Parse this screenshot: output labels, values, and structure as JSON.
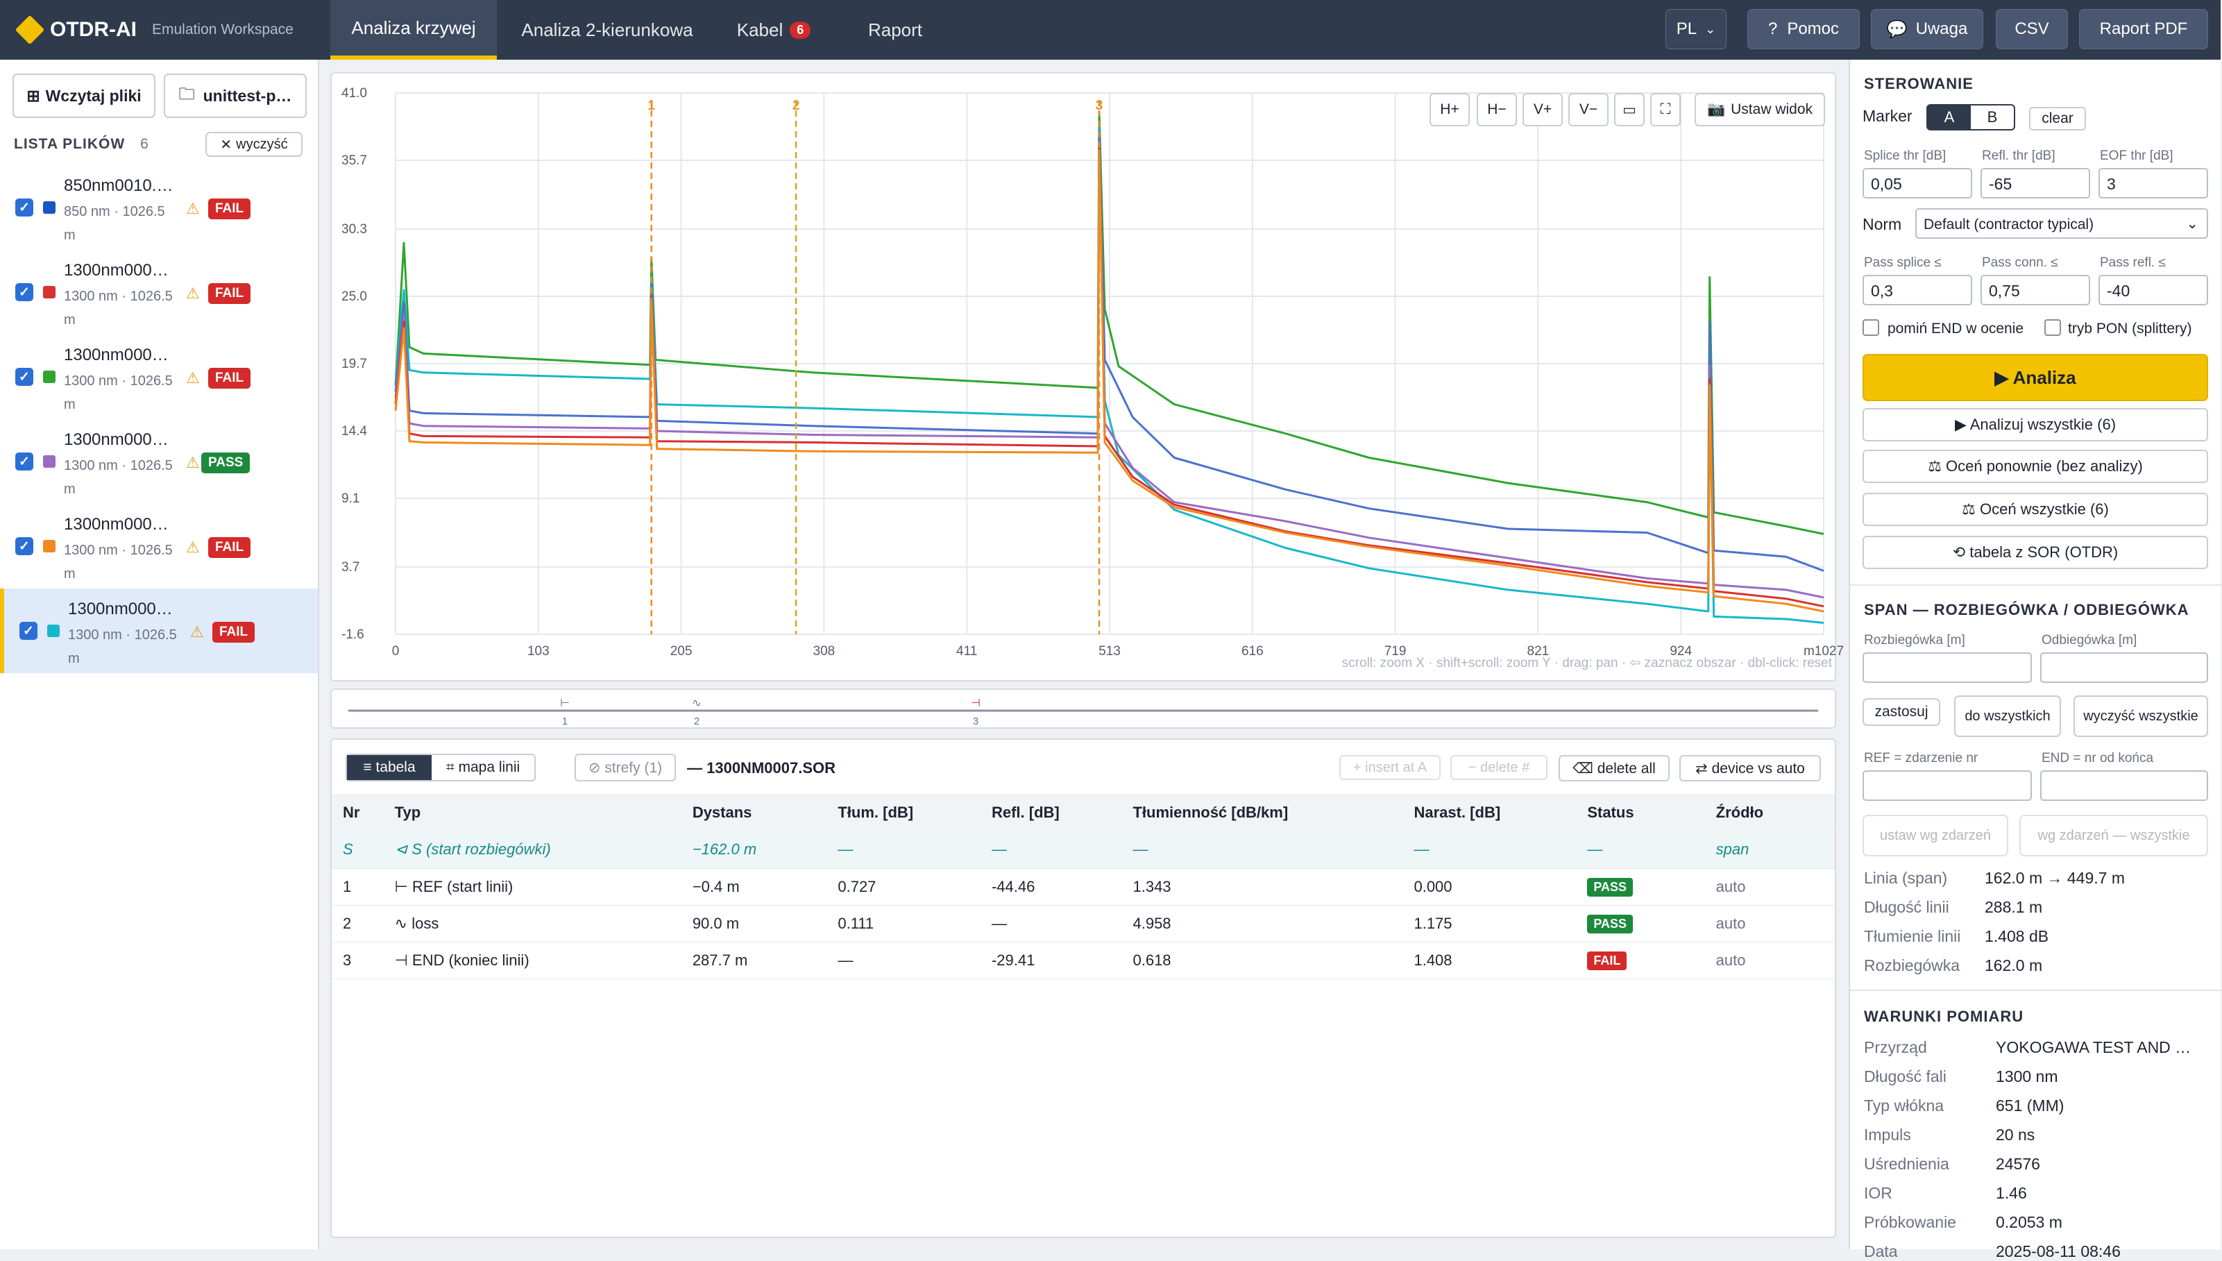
{
  "app": {
    "name": "OTDR-AI",
    "subtitle": "Emulation Workspace"
  },
  "nav": {
    "tabs": [
      "Analiza krzywej",
      "Analiza 2-kierunkowa",
      "Kabel",
      "Raport"
    ],
    "cable_count": "6"
  },
  "topright": {
    "lang": "PL",
    "help": "Pomoc",
    "note": "Uwaga",
    "csv": "CSV",
    "pdf": "Raport PDF"
  },
  "sidebar": {
    "load_button": "Wczytaj pliki",
    "folder_button": "unittest-p…",
    "list_title": "LISTA PLIKÓW",
    "count": "6",
    "clear": "wyczyść",
    "files": [
      {
        "name": "850nm0010.…",
        "meta": "850 nm · 1026.5 m",
        "status": "FAIL",
        "color": "#1a56c4"
      },
      {
        "name": "1300nm000…",
        "meta": "1300 nm · 1026.5 m",
        "status": "FAIL",
        "color": "#d93030"
      },
      {
        "name": "1300nm000…",
        "meta": "1300 nm · 1026.5 m",
        "status": "FAIL",
        "color": "#2fa52f"
      },
      {
        "name": "1300nm000…",
        "meta": "1300 nm · 1026.5 m",
        "status": "PASS",
        "color": "#9b6bc4"
      },
      {
        "name": "1300nm000…",
        "meta": "1300 nm · 1026.5 m",
        "status": "FAIL",
        "color": "#f08a1c"
      },
      {
        "name": "1300nm000…",
        "meta": "1300 nm · 1026.5 m",
        "status": "FAIL",
        "color": "#17b8c8"
      }
    ]
  },
  "chart_toolbar": [
    "H+",
    "H−",
    "V+",
    "V−",
    "▭",
    "⛶"
  ],
  "set_view": "Ustaw widok",
  "chart_hint": "scroll: zoom X · shift+scroll: zoom Y · drag: pan · ⇦ zaznacz obszar · dbl-click: reset",
  "chart_data": {
    "type": "line",
    "x_ticks": [
      "0",
      "103",
      "205",
      "308",
      "411",
      "513",
      "616",
      "719",
      "821",
      "924",
      "m1027"
    ],
    "y_ticks": [
      "41.0",
      "35.7",
      "30.3",
      "25.0",
      "19.7",
      "14.4",
      "9.1",
      "3.7",
      "-1.6"
    ],
    "xlim": [
      0,
      1027
    ],
    "ylim": [
      -1.6,
      41.0
    ],
    "markers": [
      {
        "label": "1",
        "x": 184,
        "color": "#f08a1c"
      },
      {
        "label": "2",
        "x": 288,
        "color": "#e0a020"
      },
      {
        "label": "3",
        "x": 506,
        "color": "#e0902a"
      }
    ],
    "series": [
      {
        "color": "#2fa52f",
        "points": [
          [
            0,
            18.0
          ],
          [
            6,
            29.2
          ],
          [
            10,
            21.0
          ],
          [
            20,
            20.5
          ],
          [
            183,
            19.6
          ],
          [
            184,
            28.0
          ],
          [
            187,
            20.0
          ],
          [
            300,
            19.0
          ],
          [
            505,
            17.8
          ],
          [
            506,
            39.5
          ],
          [
            510,
            24.0
          ],
          [
            520,
            19.5
          ],
          [
            560,
            16.5
          ],
          [
            640,
            14.2
          ],
          [
            700,
            12.3
          ],
          [
            800,
            10.3
          ],
          [
            900,
            8.8
          ],
          [
            944,
            7.6
          ],
          [
            945,
            26.5
          ],
          [
            948,
            8.0
          ],
          [
            1000,
            6.9
          ],
          [
            1027,
            6.3
          ]
        ]
      },
      {
        "color": "#17b8c8",
        "points": [
          [
            0,
            18.0
          ],
          [
            6,
            25.5
          ],
          [
            10,
            19.2
          ],
          [
            20,
            19.0
          ],
          [
            183,
            18.5
          ],
          [
            184,
            26.5
          ],
          [
            188,
            16.5
          ],
          [
            300,
            16.2
          ],
          [
            505,
            15.5
          ],
          [
            506,
            38.5
          ],
          [
            510,
            16.8
          ],
          [
            520,
            12.5
          ],
          [
            560,
            8.2
          ],
          [
            640,
            5.2
          ],
          [
            700,
            3.6
          ],
          [
            800,
            1.9
          ],
          [
            900,
            0.8
          ],
          [
            944,
            0.2
          ],
          [
            945,
            18.5
          ],
          [
            948,
            -0.2
          ],
          [
            1000,
            -0.4
          ],
          [
            1027,
            -0.7
          ]
        ]
      },
      {
        "color": "#4a72cc",
        "points": [
          [
            0,
            17.5
          ],
          [
            6,
            24.5
          ],
          [
            10,
            16.0
          ],
          [
            20,
            15.8
          ],
          [
            183,
            15.5
          ],
          [
            184,
            26.0
          ],
          [
            188,
            15.2
          ],
          [
            300,
            14.8
          ],
          [
            505,
            14.2
          ],
          [
            506,
            38.0
          ],
          [
            510,
            20.0
          ],
          [
            530,
            15.5
          ],
          [
            560,
            12.3
          ],
          [
            640,
            9.8
          ],
          [
            700,
            8.3
          ],
          [
            800,
            6.7
          ],
          [
            900,
            6.4
          ],
          [
            944,
            4.8
          ],
          [
            945,
            23.0
          ],
          [
            948,
            5.0
          ],
          [
            1000,
            4.5
          ],
          [
            1027,
            3.4
          ]
        ]
      },
      {
        "color": "#9b6bc4",
        "points": [
          [
            0,
            17.0
          ],
          [
            6,
            23.5
          ],
          [
            10,
            15.0
          ],
          [
            20,
            14.8
          ],
          [
            183,
            14.6
          ],
          [
            184,
            25.0
          ],
          [
            188,
            14.4
          ],
          [
            300,
            14.1
          ],
          [
            505,
            13.9
          ],
          [
            506,
            37.0
          ],
          [
            510,
            15.0
          ],
          [
            530,
            11.5
          ],
          [
            560,
            8.8
          ],
          [
            640,
            7.3
          ],
          [
            700,
            6.0
          ],
          [
            800,
            4.4
          ],
          [
            900,
            2.8
          ],
          [
            944,
            2.4
          ],
          [
            945,
            19.5
          ],
          [
            948,
            2.3
          ],
          [
            1000,
            1.9
          ],
          [
            1027,
            1.3
          ]
        ]
      },
      {
        "color": "#d93030",
        "points": [
          [
            0,
            16.5
          ],
          [
            6,
            23.0
          ],
          [
            10,
            14.2
          ],
          [
            20,
            14.0
          ],
          [
            183,
            13.9
          ],
          [
            184,
            25.0
          ],
          [
            188,
            13.6
          ],
          [
            300,
            13.5
          ],
          [
            505,
            13.2
          ],
          [
            506,
            37.0
          ],
          [
            510,
            14.0
          ],
          [
            530,
            10.8
          ],
          [
            560,
            8.6
          ],
          [
            640,
            6.5
          ],
          [
            700,
            5.4
          ],
          [
            800,
            4.0
          ],
          [
            900,
            2.5
          ],
          [
            944,
            2.0
          ],
          [
            945,
            18.5
          ],
          [
            948,
            1.8
          ],
          [
            1000,
            1.2
          ],
          [
            1027,
            0.6
          ]
        ]
      },
      {
        "color": "#f08a1c",
        "points": [
          [
            0,
            16.0
          ],
          [
            6,
            22.5
          ],
          [
            10,
            13.6
          ],
          [
            20,
            13.5
          ],
          [
            183,
            13.3
          ],
          [
            184,
            24.5
          ],
          [
            188,
            13.0
          ],
          [
            300,
            12.8
          ],
          [
            505,
            12.7
          ],
          [
            506,
            36.5
          ],
          [
            510,
            13.5
          ],
          [
            530,
            10.5
          ],
          [
            560,
            8.4
          ],
          [
            640,
            6.4
          ],
          [
            700,
            5.3
          ],
          [
            800,
            3.8
          ],
          [
            900,
            2.2
          ],
          [
            944,
            1.7
          ],
          [
            945,
            18.0
          ],
          [
            948,
            1.4
          ],
          [
            1000,
            0.8
          ],
          [
            1027,
            0.2
          ]
        ]
      }
    ]
  },
  "overview": {
    "labels": [
      "1",
      "2",
      "3"
    ]
  },
  "events": {
    "view_table": "≡ tabela",
    "view_map": "⌗ mapa linii",
    "zones": "⊘ strefy (1)",
    "file": "— 1300NM0007.SOR",
    "insert": "+ insert at A",
    "delete": "− delete #",
    "delete_all": "⌫ delete all",
    "device": "⇄ device vs auto",
    "headers": [
      "Nr",
      "Typ",
      "Dystans",
      "Tłum. [dB]",
      "Refl. [dB]",
      "Tłumienność [dB/km]",
      "Narast. [dB]",
      "Status",
      "Źródło"
    ],
    "rows": [
      {
        "nr": "S",
        "typ": "⊲ S (start rozbiegówki)",
        "dist": "−162.0 m",
        "att": "—",
        "refl": "—",
        "coef": "—",
        "cum": "—",
        "status": "—",
        "src": "span",
        "kind": "span"
      },
      {
        "nr": "1",
        "typ": "⊢ REF (start linii)",
        "dist": "−0.4 m",
        "att": "0.727",
        "refl": "-44.46",
        "coef": "1.343",
        "cum": "0.000",
        "status": "PASS",
        "src": "auto",
        "kind": "pass"
      },
      {
        "nr": "2",
        "typ": "∿ loss",
        "dist": "90.0 m",
        "att": "0.111",
        "refl": "—",
        "coef": "4.958",
        "cum": "1.175",
        "status": "PASS",
        "src": "auto",
        "kind": "pass"
      },
      {
        "nr": "3",
        "typ": "⊣ END (koniec linii)",
        "dist": "287.7 m",
        "att": "—",
        "refl": "-29.41",
        "coef": "0.618",
        "cum": "1.408",
        "status": "FAIL",
        "src": "auto",
        "kind": "fail"
      }
    ]
  },
  "control": {
    "title": "STEROWANIE",
    "marker": "Marker",
    "a": "A",
    "b": "B",
    "clear": "clear",
    "splice_lbl": "Splice thr [dB]",
    "refl_lbl": "Refl. thr [dB]",
    "eof_lbl": "EOF thr [dB]",
    "splice": "0,05",
    "refl": "-65",
    "eof": "3",
    "norm_lbl": "Norm",
    "norm": "Default (contractor typical)",
    "pass_splice_lbl": "Pass splice ≤",
    "pass_conn_lbl": "Pass conn. ≤",
    "pass_refl_lbl": "Pass refl. ≤",
    "pass_splice": "0,3",
    "pass_conn": "0,75",
    "pass_refl": "-40",
    "skip_end": "pomiń END w ocenie",
    "pon": "tryb PON (splittery)",
    "analyze": "▶ Analiza",
    "analyze_all": "▶ Analizuj wszystkie (6)",
    "reeval": "⚖ Oceń ponownie (bez analizy)",
    "eval_all": "⚖ Oceń wszystkie (6)",
    "sor_table": "⟲ tabela z SOR (OTDR)"
  },
  "span": {
    "title": "SPAN — ROZBIEGÓWKA / ODBIEGÓWKA",
    "launch_lbl": "Rozbiegówka [m]",
    "tail_lbl": "Odbiegówka [m]",
    "apply": "zastosuj",
    "to_all": "do wszystkich",
    "clear_all": "wyczyść wszystkie",
    "ref_lbl": "REF = zdarzenie nr",
    "end_lbl": "END = nr od końca",
    "by_events": "ustaw wg zdarzeń",
    "by_events_all": "wg zdarzeń — wszystkie",
    "stats": [
      [
        "Linia (span)",
        "162.0 m → 449.7 m"
      ],
      [
        "Długość linii",
        "288.1 m"
      ],
      [
        "Tłumienie linii",
        "1.408 dB"
      ],
      [
        "Rozbiegówka",
        "162.0 m"
      ]
    ]
  },
  "conditions": {
    "title": "WARUNKI POMIARU",
    "rows": [
      [
        "Przyrząd",
        "YOKOGAWA TEST AND …"
      ],
      [
        "Długość fali",
        "1300 nm"
      ],
      [
        "Typ włókna",
        "651 (MM)"
      ],
      [
        "Impuls",
        "20 ns"
      ],
      [
        "Uśrednienia",
        "24576"
      ],
      [
        "IOR",
        "1.46"
      ],
      [
        "Próbkowanie",
        "0.2053 m"
      ],
      [
        "Data",
        "2025-08-11 08:46"
      ]
    ]
  }
}
